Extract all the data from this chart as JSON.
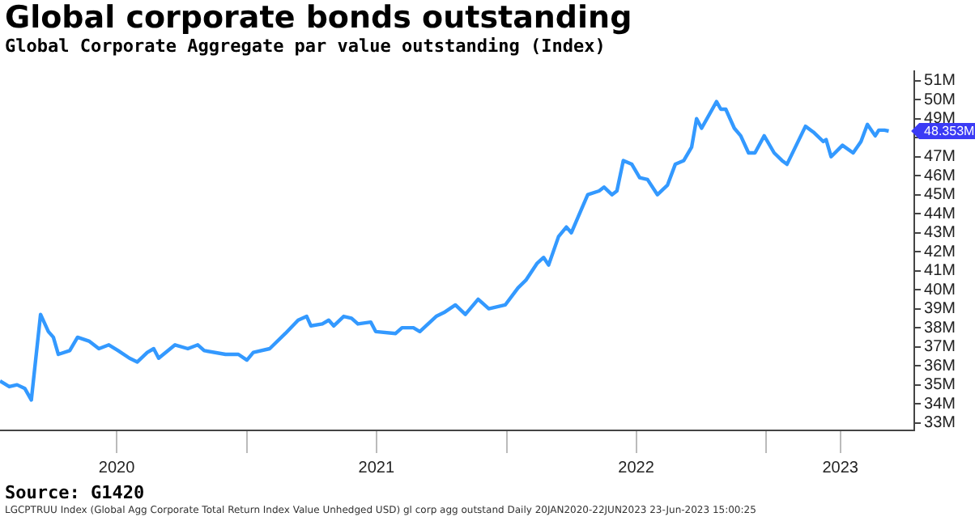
{
  "chart_data": {
    "type": "line",
    "title": "Global corporate bonds outstanding",
    "subtitle": "Global Corporate Aggregate par value outstanding (Index)",
    "x": [
      "2020-01-20",
      "2020-02-02",
      "2020-02-13",
      "2020-02-24",
      "2020-03-04",
      "2020-03-17",
      "2020-03-28",
      "2020-04-04",
      "2020-04-11",
      "2020-04-27",
      "2020-05-08",
      "2020-05-24",
      "2020-06-07",
      "2020-06-21",
      "2020-07-04",
      "2020-07-20",
      "2020-07-31",
      "2020-08-14",
      "2020-08-23",
      "2020-08-30",
      "2020-09-22",
      "2020-10-10",
      "2020-10-24",
      "2020-11-02",
      "2020-12-02",
      "2020-12-20",
      "2021-01-01",
      "2021-01-10",
      "2021-02-02",
      "2021-02-24",
      "2021-03-14",
      "2021-03-26",
      "2021-04-01",
      "2021-04-17",
      "2021-04-26",
      "2021-05-03",
      "2021-05-17",
      "2021-05-28",
      "2021-06-06",
      "2021-06-24",
      "2021-07-01",
      "2021-07-29",
      "2021-08-07",
      "2021-08-23",
      "2021-09-01",
      "2021-09-24",
      "2021-10-05",
      "2021-10-21",
      "2021-11-04",
      "2021-11-22",
      "2021-12-07",
      "2021-12-30",
      "2022-01-17",
      "2022-01-28",
      "2022-02-13",
      "2022-02-22",
      "2022-03-01",
      "2022-03-15",
      "2022-03-26",
      "2022-04-02",
      "2022-04-18",
      "2022-04-25",
      "2022-05-11",
      "2022-05-18",
      "2022-05-29",
      "2022-06-05",
      "2022-06-14",
      "2022-06-26",
      "2022-07-07",
      "2022-07-18",
      "2022-08-01",
      "2022-08-15",
      "2022-08-26",
      "2022-09-07",
      "2022-09-18",
      "2022-09-25",
      "2022-10-02",
      "2022-10-23",
      "2022-10-29",
      "2022-11-05",
      "2022-11-17",
      "2022-11-26",
      "2022-12-07",
      "2022-12-16",
      "2022-12-29",
      "2023-01-12",
      "2023-01-23",
      "2023-01-30",
      "2023-02-25",
      "2023-03-08",
      "2023-03-22",
      "2023-03-26",
      "2023-04-02",
      "2023-04-18",
      "2023-05-03",
      "2023-05-14",
      "2023-05-23",
      "2023-06-03",
      "2023-06-08",
      "2023-06-16",
      "2023-06-22"
    ],
    "series": [
      {
        "color": "#3399ff",
        "values": [
          35.2,
          34.9,
          35.0,
          34.8,
          34.2,
          38.7,
          37.8,
          37.5,
          36.6,
          36.8,
          37.5,
          37.3,
          36.9,
          37.1,
          36.8,
          36.4,
          36.2,
          36.7,
          36.9,
          36.4,
          37.1,
          36.9,
          37.1,
          36.8,
          36.6,
          36.6,
          36.3,
          36.7,
          36.9,
          37.7,
          38.4,
          38.6,
          38.1,
          38.2,
          38.4,
          38.1,
          38.6,
          38.5,
          38.2,
          38.3,
          37.8,
          37.7,
          38.0,
          38.0,
          37.8,
          38.6,
          38.8,
          39.2,
          38.7,
          39.5,
          39.0,
          39.2,
          40.1,
          40.5,
          41.4,
          41.7,
          41.3,
          42.8,
          43.3,
          43.0,
          44.4,
          45.0,
          45.2,
          45.4,
          45.0,
          45.2,
          46.8,
          46.6,
          45.9,
          45.8,
          45.0,
          45.5,
          46.6,
          46.8,
          47.5,
          49.0,
          48.5,
          49.9,
          49.5,
          49.5,
          48.5,
          48.1,
          47.2,
          47.2,
          48.1,
          47.2,
          46.8,
          46.6,
          48.6,
          48.3,
          47.8,
          47.9,
          47.0,
          47.6,
          47.2,
          47.8,
          48.7,
          48.1,
          48.4,
          48.4,
          48.35
        ]
      }
    ],
    "xlim": [
      "2020-01-20",
      "2023-07-28"
    ],
    "xticks": [
      {
        "value": "2020-07-02",
        "label": "2020"
      },
      {
        "value": "2021-01-01",
        "label": null
      },
      {
        "value": "2021-07-02",
        "label": "2021"
      },
      {
        "value": "2022-01-01",
        "label": null
      },
      {
        "value": "2022-07-02",
        "label": "2022"
      },
      {
        "value": "2023-01-01",
        "label": null
      },
      {
        "value": "2023-04-15",
        "label": "2023"
      }
    ],
    "ylim": [
      32.6,
      51.5
    ],
    "yticks": [
      {
        "value": 33,
        "label": "33M"
      },
      {
        "value": 34,
        "label": "34M"
      },
      {
        "value": 35,
        "label": "35M"
      },
      {
        "value": 36,
        "label": "36M"
      },
      {
        "value": 37,
        "label": "37M"
      },
      {
        "value": 38,
        "label": "38M"
      },
      {
        "value": 39,
        "label": "39M"
      },
      {
        "value": 40,
        "label": "40M"
      },
      {
        "value": 41,
        "label": "41M"
      },
      {
        "value": 42,
        "label": "42M"
      },
      {
        "value": 43,
        "label": "43M"
      },
      {
        "value": 44,
        "label": "44M"
      },
      {
        "value": 45,
        "label": "45M"
      },
      {
        "value": 46,
        "label": "46M"
      },
      {
        "value": 47,
        "label": "47M"
      },
      {
        "value": 48,
        "label": null
      },
      {
        "value": 49,
        "label": "49M"
      },
      {
        "value": 50,
        "label": "50M"
      },
      {
        "value": 51,
        "label": "51M"
      }
    ],
    "grid": false,
    "legend": false,
    "marker": "none",
    "line_style": "solid",
    "annotations": [
      {
        "text": "48.353M",
        "x": "2023-06-22",
        "y": 48.353
      },
      "Source: G1420",
      "LGCPTRUU Index (Global Agg Corporate Total Return Index Value Unhedged USD) gl corp agg outstand  Daily 20JAN2020-22JUN2023   23-Jun-2023 15:00:25"
    ]
  }
}
